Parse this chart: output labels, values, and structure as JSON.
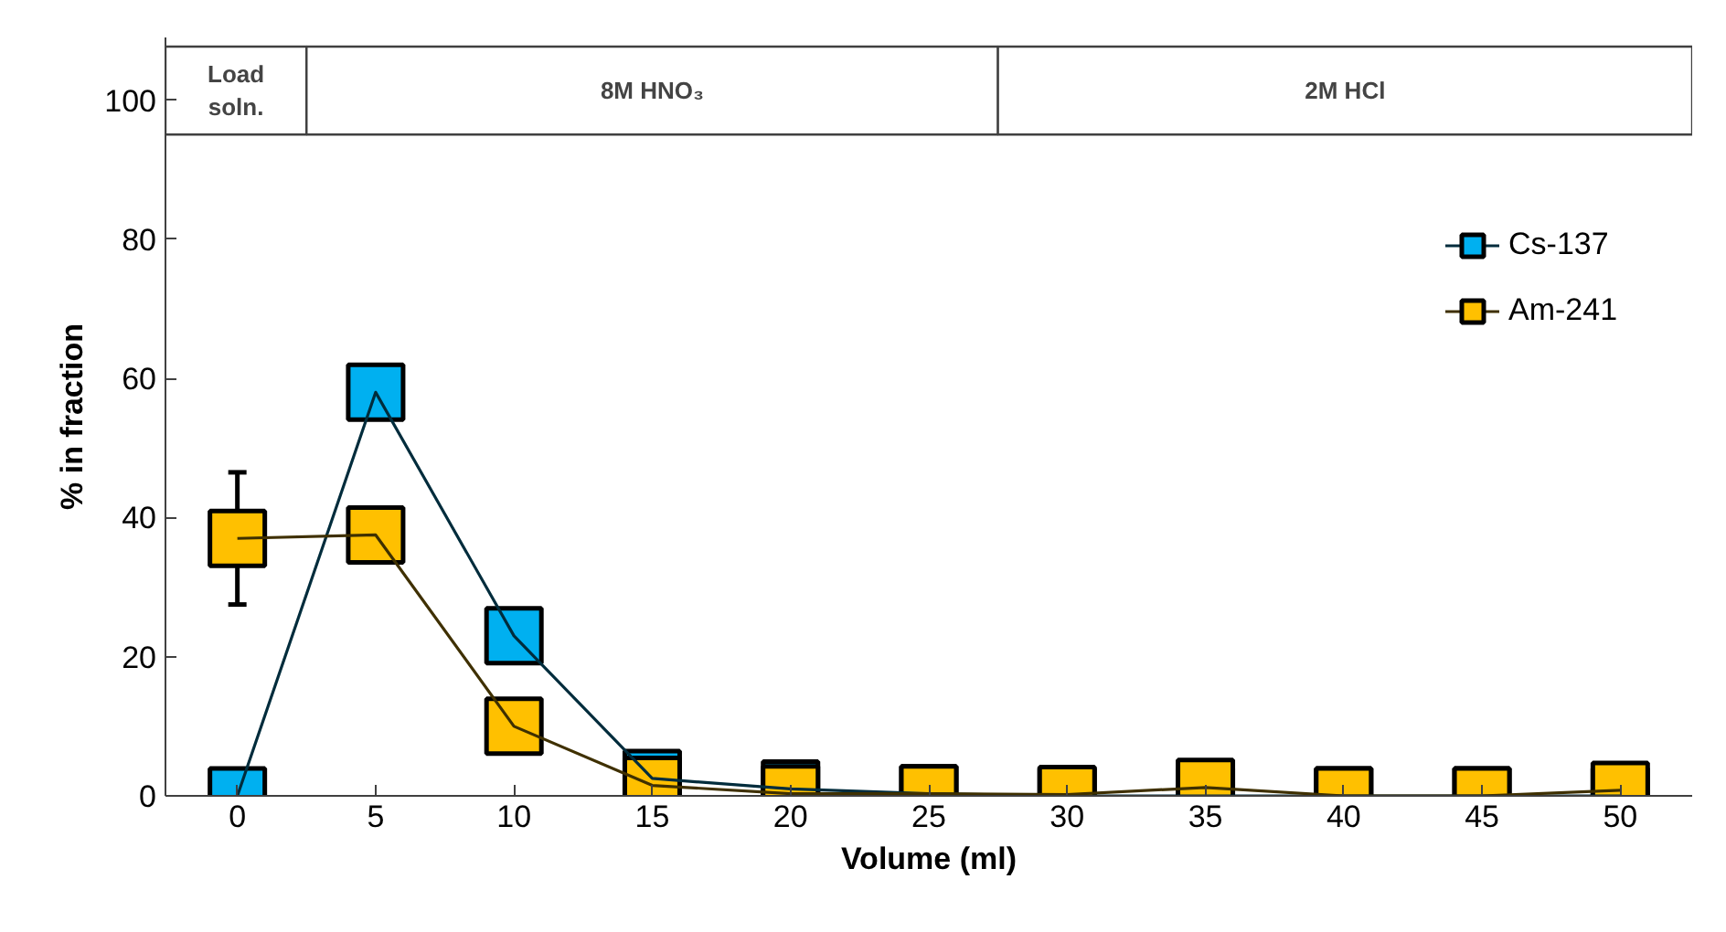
{
  "chart_data": {
    "type": "line",
    "xlabel": "Volume (ml)",
    "ylabel": "% in fraction",
    "x": [
      0,
      5,
      10,
      15,
      20,
      25,
      30,
      35,
      40,
      45,
      50
    ],
    "xlim": [
      -2.6,
      52.6
    ],
    "xticks": [
      0,
      5,
      10,
      15,
      20,
      25,
      30,
      35,
      40,
      45,
      50
    ],
    "ylim": [
      0,
      109
    ],
    "yticks": [
      0,
      20,
      40,
      60,
      80,
      100
    ],
    "marker": "square",
    "grid": false,
    "legend": "top right",
    "series": [
      {
        "name": "Cs-137",
        "color": "#00b0f0",
        "values": [
          0,
          58,
          23,
          2.5,
          1,
          0.3,
          0,
          0,
          0,
          0,
          0
        ]
      },
      {
        "name": "Am-241",
        "color": "#ffc000",
        "values": [
          37,
          37.5,
          10,
          1.5,
          0.3,
          0.3,
          0.2,
          1.2,
          0,
          0,
          0.8
        ],
        "errors": [
          [
            27.5,
            46.5
          ],
          null,
          null,
          null,
          null,
          null,
          null,
          null,
          null,
          null,
          null
        ]
      }
    ],
    "bands": [
      {
        "axis": "x",
        "from": -2.6,
        "to": 2.5,
        "label": "Load soln.",
        "color": "#ffffff"
      },
      {
        "axis": "x",
        "from": 2.5,
        "to": 27.5,
        "label": "8M HNO₃",
        "color": "#ffffff"
      },
      {
        "axis": "x",
        "from": 27.5,
        "to": 52.6,
        "label": "2M HCl",
        "color": "#ffffff"
      }
    ]
  }
}
